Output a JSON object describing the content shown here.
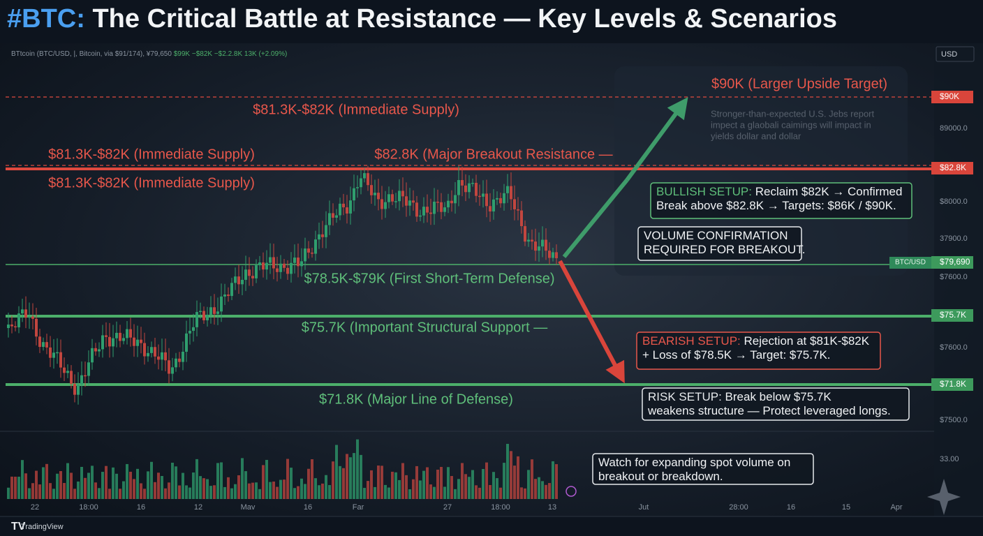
{
  "header": {
    "tag": "#BTC:",
    "title": "The Critical Battle at Resistance — Key Levels & Scenarios"
  },
  "chart": {
    "info": "BTtcoin (BTC/USD, |, Bitcoin, via $91/174), ¥79,650",
    "info_change": "$99K −$82K −$2.2.8K 13K (+2.09%)",
    "currency": "USD",
    "pair": "BTC/USD",
    "price_labels": [
      "$90K",
      "89000.0",
      "$82.8K",
      "$8000.0",
      "37900.0",
      "$79,690",
      "$7600.0",
      "$75.7K",
      "$7600.0",
      "$71.8K",
      "$7500.0",
      "33.00"
    ],
    "levels": [
      "$90K (Larger Upside Target)",
      "$81.3K-$82K (Immediate Supply)",
      "$81.3K-$82K (Immediate Supply)",
      "$82.8K (Major Breakout Resistance —",
      "$81.3K-$82K (Immediate Supply)",
      "$78.5K-$79K (First Short-Term Defense)",
      "$75.7K (Important Structural Support —",
      "$71.8K (Major Line of Defense)"
    ],
    "news": [
      "Stronger-than-expected U.S. Jebs report",
      "impect a glaobali caimings will impact in",
      "yields dollar and dollar"
    ],
    "boxes": [
      {
        "tag": "BULLISH SETUP:",
        "lines": [
          "Reclaim $82K → Confirmed",
          "Break above $82.8K → Targets: $86K / $90K."
        ]
      },
      {
        "lines": [
          "VOLUME CONFIRMATION",
          "REQUIRED FOR BREAKOUT."
        ]
      },
      {
        "tag": "BEARISH SETUP:",
        "lines": [
          "Rejection at $81K-$82K",
          "+ Loss of $78.5K → Target: $75.7K."
        ]
      },
      {
        "tag": "RISK SETUP:",
        "lines": [
          "Break below $75.7K",
          "weakens structure — Protect leveraged longs."
        ]
      },
      {
        "lines": [
          "Watch for expanding spot volume on",
          "breakout or breakdown."
        ]
      }
    ],
    "time_labels": [
      "22",
      "18:00",
      "16",
      "12",
      "Mav",
      "16",
      "Far",
      "27",
      "18:00",
      "13",
      "Jut",
      "28:00",
      "16",
      "15",
      "Apr"
    ],
    "footer": "TradingView"
  }
}
